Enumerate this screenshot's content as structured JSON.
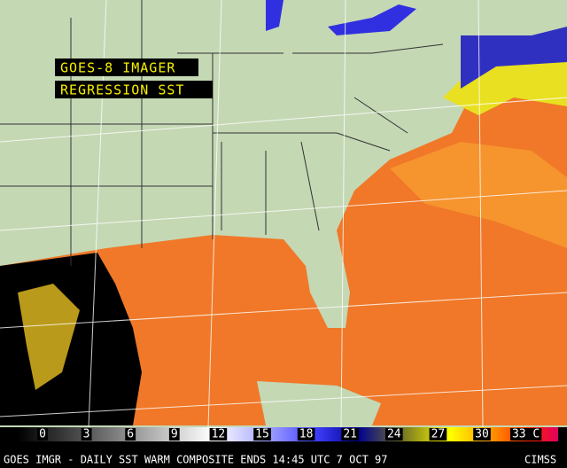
{
  "overlay": {
    "line1": "GOES-8 IMAGER",
    "line2": "REGRESSION SST"
  },
  "colorbar": {
    "labels": [
      "0",
      "3",
      "6",
      "9",
      "12",
      "15",
      "18",
      "21",
      "24",
      "27",
      "30",
      "33 C"
    ]
  },
  "footer": {
    "caption": "GOES IMGR - DAILY SST WARM COMPOSITE ENDS 14:45 UTC 7 OCT 97",
    "source": "CIMSS"
  }
}
